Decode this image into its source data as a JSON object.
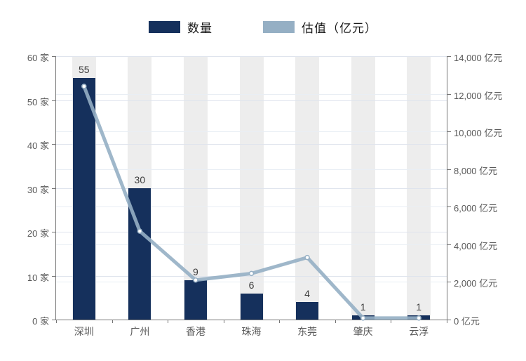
{
  "legend": {
    "items": [
      {
        "label": "数量"
      },
      {
        "label": "估值（亿元）"
      }
    ]
  },
  "colors": {
    "bar": "#15305c",
    "line": "#95afc4",
    "marker_fill": "#ffffff",
    "stripe": "#ededed",
    "grid_left": "#dfe4ed",
    "grid_right": "#e9eef4",
    "axis": "#767676",
    "tick_text": "#595959",
    "data_label": "#3c3c3c"
  },
  "chart_data": {
    "type": "bar",
    "subtype": "bar-line combo, dual y-axis",
    "categories": [
      "深圳",
      "广州",
      "香港",
      "珠海",
      "东莞",
      "肇庆",
      "云浮"
    ],
    "series": [
      {
        "name": "数量",
        "type": "bar",
        "axis": "left",
        "unit": "家",
        "values": [
          55,
          30,
          9,
          6,
          4,
          1,
          1
        ],
        "data_labels": [
          "55",
          "30",
          "9",
          "6",
          "4",
          "1",
          "1"
        ]
      },
      {
        "name": "估值（亿元）",
        "type": "line",
        "axis": "right",
        "unit": "亿元",
        "values": [
          12400,
          4700,
          2100,
          2450,
          3300,
          80,
          80
        ]
      }
    ],
    "left_axis": {
      "min": 0,
      "max": 60,
      "step": 10,
      "unit": "家",
      "tick_labels": [
        "0 家",
        "10 家",
        "20 家",
        "30 家",
        "40 家",
        "50 家",
        "60 家"
      ]
    },
    "right_axis": {
      "min": 0,
      "max": 14000,
      "step": 2000,
      "unit": "亿元",
      "tick_labels": [
        "0 亿元",
        "2,000 亿元",
        "4,000 亿元",
        "6,000 亿元",
        "8,000 亿元",
        "10,000 亿元",
        "12,000 亿元",
        "14,000 亿元"
      ]
    },
    "title": "",
    "xlabel": "",
    "grid": "both axes, light horizontal lines; light gray vertical band behind each category",
    "legend_position": "top-center"
  }
}
